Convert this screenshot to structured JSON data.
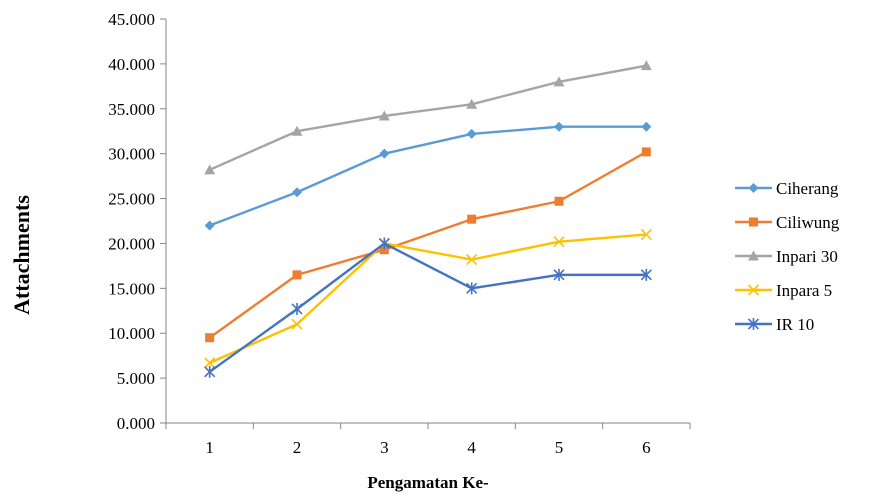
{
  "chart_data": {
    "type": "line",
    "title": "",
    "xlabel": "Pengamatan Ke-",
    "ylabel": "Attachments",
    "categories": [
      "1",
      "2",
      "3",
      "4",
      "5",
      "6"
    ],
    "ylim": [
      0,
      45
    ],
    "yticks": [
      0,
      5,
      10,
      15,
      20,
      25,
      30,
      35,
      40,
      45
    ],
    "ytick_labels": [
      "0.000",
      "5.000",
      "10.000",
      "15.000",
      "20.000",
      "25.000",
      "30.000",
      "35.000",
      "40.000",
      "45.000"
    ],
    "grid": false,
    "legend_position": "right",
    "series": [
      {
        "name": "Ciherang",
        "color": "#5B9BD5",
        "marker": "diamond",
        "values": [
          22.0,
          25.7,
          30.0,
          32.2,
          33.0,
          33.0
        ]
      },
      {
        "name": "Ciliwung",
        "color": "#ED7D31",
        "marker": "square",
        "values": [
          9.5,
          16.5,
          19.3,
          22.7,
          24.7,
          30.2
        ]
      },
      {
        "name": "Inpari 30",
        "color": "#A5A5A5",
        "marker": "triangle",
        "values": [
          28.2,
          32.5,
          34.2,
          35.5,
          38.0,
          39.8
        ]
      },
      {
        "name": "Inpara 5",
        "color": "#FFC000",
        "marker": "x",
        "values": [
          6.7,
          11.0,
          20.0,
          18.2,
          20.2,
          21.0
        ]
      },
      {
        "name": "IR 10",
        "color": "#4472C4",
        "marker": "star",
        "values": [
          5.7,
          12.7,
          20.0,
          15.0,
          16.5,
          16.5
        ]
      }
    ]
  }
}
